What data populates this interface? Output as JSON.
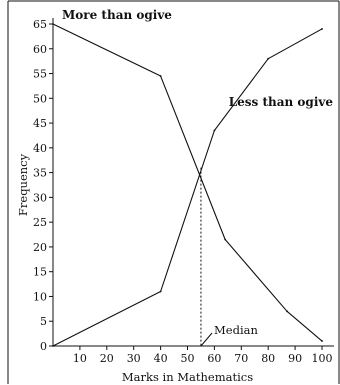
{
  "chart_data": {
    "type": "line",
    "title": "",
    "xlabel": "Marks in Mathematics",
    "ylabel": "Frequency",
    "xlim": [
      0,
      100
    ],
    "ylim": [
      0,
      65
    ],
    "x_ticks": [
      10,
      20,
      30,
      40,
      50,
      60,
      70,
      80,
      90,
      100
    ],
    "y_ticks": [
      0,
      5,
      10,
      15,
      20,
      25,
      30,
      35,
      40,
      45,
      50,
      55,
      60,
      65
    ],
    "grid": false,
    "legend": "none",
    "series": [
      {
        "name": "More than ogive",
        "x": [
          0,
          40,
          64,
          87,
          100
        ],
        "y": [
          65,
          54.5,
          21.5,
          7,
          1
        ]
      },
      {
        "name": "Less than ogive",
        "x": [
          0,
          40,
          60,
          80,
          100
        ],
        "y": [
          0,
          11,
          43.5,
          58,
          64
        ]
      }
    ],
    "annotations": [
      {
        "text": "Median",
        "x": 55,
        "y": 0
      }
    ],
    "median_line": {
      "x": 55,
      "y": 36
    },
    "colors": {
      "line": "#111111",
      "axis": "#111111",
      "background": "#ffffff"
    }
  }
}
